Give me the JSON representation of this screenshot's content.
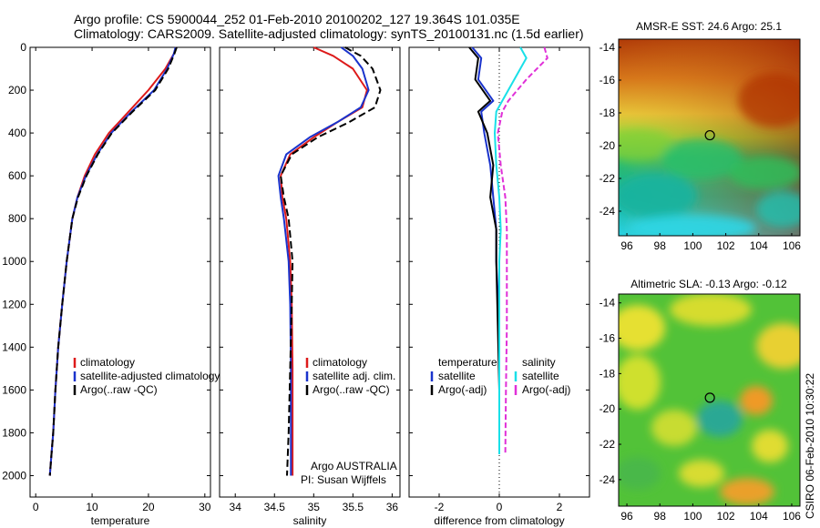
{
  "header": {
    "line1": "Argo profile: CS 5900044_252 01-Feb-2010 20100202_127 19.364S 101.035E",
    "line2": "Climatology: CARS2009. Satellite-adjusted climatology: synTS_20100131.nc (1.5d earlier)"
  },
  "colors": {
    "red": "#dd1a1a",
    "blue": "#1a33cc",
    "black": "#000000",
    "cyan": "#19e0e8",
    "magenta": "#e030d8"
  },
  "chart_data": [
    {
      "type": "line",
      "xlabel": "temperature",
      "ylabel": "",
      "xlim": [
        -1,
        31
      ],
      "ylim": [
        2100,
        0
      ],
      "x_ticks": [
        "0",
        "10",
        "20",
        "30"
      ],
      "y_ticks": [
        "0",
        "200",
        "400",
        "600",
        "800",
        "1000",
        "1200",
        "1400",
        "1600",
        "1800",
        "2000"
      ],
      "legend": [
        "climatology",
        "satellite-adjusted climatology",
        "Argo(..raw -QC)"
      ],
      "series": [
        {
          "name": "climatology",
          "color": "red",
          "dash": "",
          "x": [
            24.9,
            24.5,
            23.0,
            20.0,
            16.5,
            13.0,
            10.5,
            8.7,
            7.4,
            6.5,
            5.5,
            4.7,
            4.0,
            3.5,
            3.1,
            2.8,
            2.5
          ],
          "y": [
            0,
            30,
            100,
            200,
            300,
            400,
            500,
            600,
            700,
            800,
            1000,
            1200,
            1400,
            1600,
            1800,
            1900,
            2000
          ]
        },
        {
          "name": "satellite-adjusted climatology",
          "color": "blue",
          "dash": "",
          "x": [
            24.8,
            24.5,
            23.3,
            21.0,
            17.0,
            13.4,
            10.9,
            8.9,
            7.4,
            6.5,
            5.5,
            4.7,
            4.0,
            3.5,
            3.1,
            2.8,
            2.5
          ],
          "y": [
            0,
            30,
            100,
            200,
            300,
            400,
            500,
            600,
            700,
            800,
            1000,
            1200,
            1400,
            1600,
            1800,
            1900,
            2000
          ]
        },
        {
          "name": "Argo(..raw -QC)",
          "color": "black",
          "dash": "8,4",
          "x": [
            25.0,
            24.6,
            23.5,
            21.2,
            17.2,
            13.5,
            11.0,
            9.0,
            7.5,
            6.5,
            5.5,
            4.7,
            4.0,
            3.5,
            3.1,
            2.8,
            2.5
          ],
          "y": [
            0,
            30,
            100,
            200,
            300,
            400,
            500,
            600,
            700,
            800,
            1000,
            1200,
            1400,
            1600,
            1800,
            1900,
            2000
          ]
        }
      ]
    },
    {
      "type": "line",
      "xlabel": "salinity",
      "ylabel": "",
      "xlim": [
        33.8,
        36.1
      ],
      "ylim": [
        2100,
        0
      ],
      "x_ticks": [
        "34",
        "34.5",
        "35",
        "35.5",
        "36"
      ],
      "legend": [
        "climatology",
        "satellite adj. clim.",
        "Argo(..raw -QC)"
      ],
      "annotation": [
        "Argo AUSTRALIA",
        "PI: Susan Wijffels"
      ],
      "series": [
        {
          "name": "climatology",
          "color": "red",
          "dash": "",
          "x": [
            35.0,
            35.25,
            35.5,
            35.68,
            35.62,
            35.3,
            35.0,
            34.7,
            34.58,
            34.6,
            34.65,
            34.7,
            34.72,
            34.73,
            34.73,
            34.73
          ],
          "y": [
            0,
            40,
            100,
            200,
            280,
            350,
            420,
            500,
            600,
            700,
            800,
            1000,
            1200,
            1500,
            1800,
            2000
          ]
        },
        {
          "name": "satellite adj. clim.",
          "color": "blue",
          "dash": "",
          "x": [
            35.35,
            35.5,
            35.62,
            35.7,
            35.6,
            35.3,
            34.95,
            34.65,
            34.55,
            34.58,
            34.62,
            34.68,
            34.7,
            34.71,
            34.71,
            34.71
          ],
          "y": [
            0,
            40,
            100,
            200,
            280,
            350,
            420,
            500,
            600,
            700,
            800,
            1000,
            1200,
            1500,
            1800,
            2000
          ]
        },
        {
          "name": "Argo(..raw -QC)",
          "color": "black",
          "dash": "8,4",
          "x": [
            35.4,
            35.6,
            35.75,
            35.85,
            35.78,
            35.45,
            35.05,
            34.72,
            34.58,
            34.62,
            34.68,
            34.73,
            34.72,
            34.7,
            34.68,
            34.66
          ],
          "y": [
            0,
            40,
            100,
            200,
            280,
            350,
            420,
            500,
            600,
            700,
            800,
            1000,
            1200,
            1500,
            1800,
            2000
          ]
        }
      ]
    },
    {
      "type": "line",
      "xlabel": "difference from climatology",
      "ylabel": "",
      "xlim": [
        -3,
        3
      ],
      "ylim": [
        2100,
        0
      ],
      "x_ticks": [
        "-2",
        "0",
        "2"
      ],
      "legend_groups": [
        {
          "title": "temperature",
          "items": [
            "satellite",
            "Argo(-adj)"
          ]
        },
        {
          "title": "salinity",
          "items": [
            "satellite",
            "Argo(-adj)"
          ]
        }
      ],
      "series": [
        {
          "name": "satellite",
          "group": "temperature",
          "color": "blue",
          "dash": "",
          "x": [
            -0.9,
            -0.6,
            -0.7,
            -0.2,
            -0.6,
            -0.5,
            -0.3,
            -0.2,
            -0.1,
            -0.1,
            0.0,
            0.0,
            0.0
          ],
          "y": [
            0,
            50,
            150,
            250,
            300,
            400,
            550,
            700,
            850,
            1000,
            1300,
            1600,
            1900
          ]
        },
        {
          "name": "Argo(-adj)",
          "group": "temperature",
          "color": "black",
          "dash": "",
          "x": [
            -1.0,
            -0.7,
            -0.8,
            -0.3,
            -0.7,
            -0.4,
            -0.2,
            -0.3,
            -0.1,
            -0.1,
            -0.05,
            0.0,
            0.0
          ],
          "y": [
            0,
            50,
            150,
            250,
            300,
            400,
            550,
            700,
            850,
            1000,
            1300,
            1600,
            1900
          ]
        },
        {
          "name": "satellite",
          "group": "salinity",
          "color": "cyan",
          "dash": "",
          "x": [
            0.7,
            0.9,
            0.5,
            0.1,
            -0.1,
            -0.15,
            -0.1,
            0.0,
            0.05,
            0.0,
            0.0,
            0.0,
            0.0
          ],
          "y": [
            0,
            50,
            150,
            250,
            300,
            400,
            550,
            700,
            850,
            1000,
            1300,
            1600,
            1900
          ]
        },
        {
          "name": "Argo(-adj)",
          "group": "salinity",
          "color": "magenta",
          "dash": "6,3",
          "x": [
            1.5,
            1.6,
            0.9,
            0.3,
            0.1,
            -0.05,
            0.05,
            0.2,
            0.25,
            0.25,
            0.25,
            0.22,
            0.2
          ],
          "y": [
            0,
            50,
            150,
            250,
            300,
            400,
            550,
            700,
            850,
            1000,
            1300,
            1600,
            1900
          ]
        }
      ]
    },
    {
      "type": "heatmap",
      "title": "AMSR-E SST: 24.6 Argo: 25.1",
      "xlim": [
        95.5,
        106.5
      ],
      "ylim": [
        -25.5,
        -13.5
      ],
      "x_ticks": [
        "96",
        "98",
        "100",
        "102",
        "104",
        "106"
      ],
      "y_ticks": [
        "-14",
        "-16",
        "-18",
        "-20",
        "-22",
        "-24"
      ],
      "marker": {
        "x": 101.035,
        "y": -19.364
      }
    },
    {
      "type": "heatmap",
      "title": "Altimetric SLA: -0.13 Argo: -0.12",
      "xlim": [
        95.5,
        106.5
      ],
      "ylim": [
        -25.5,
        -13.5
      ],
      "x_ticks": [
        "96",
        "98",
        "100",
        "102",
        "104",
        "106"
      ],
      "y_ticks": [
        "-14",
        "-16",
        "-18",
        "-20",
        "-22",
        "-24"
      ],
      "marker": {
        "x": 101.035,
        "y": -19.364
      }
    }
  ],
  "side_label": "CSIRO 06-Feb-2010 10:30:22"
}
